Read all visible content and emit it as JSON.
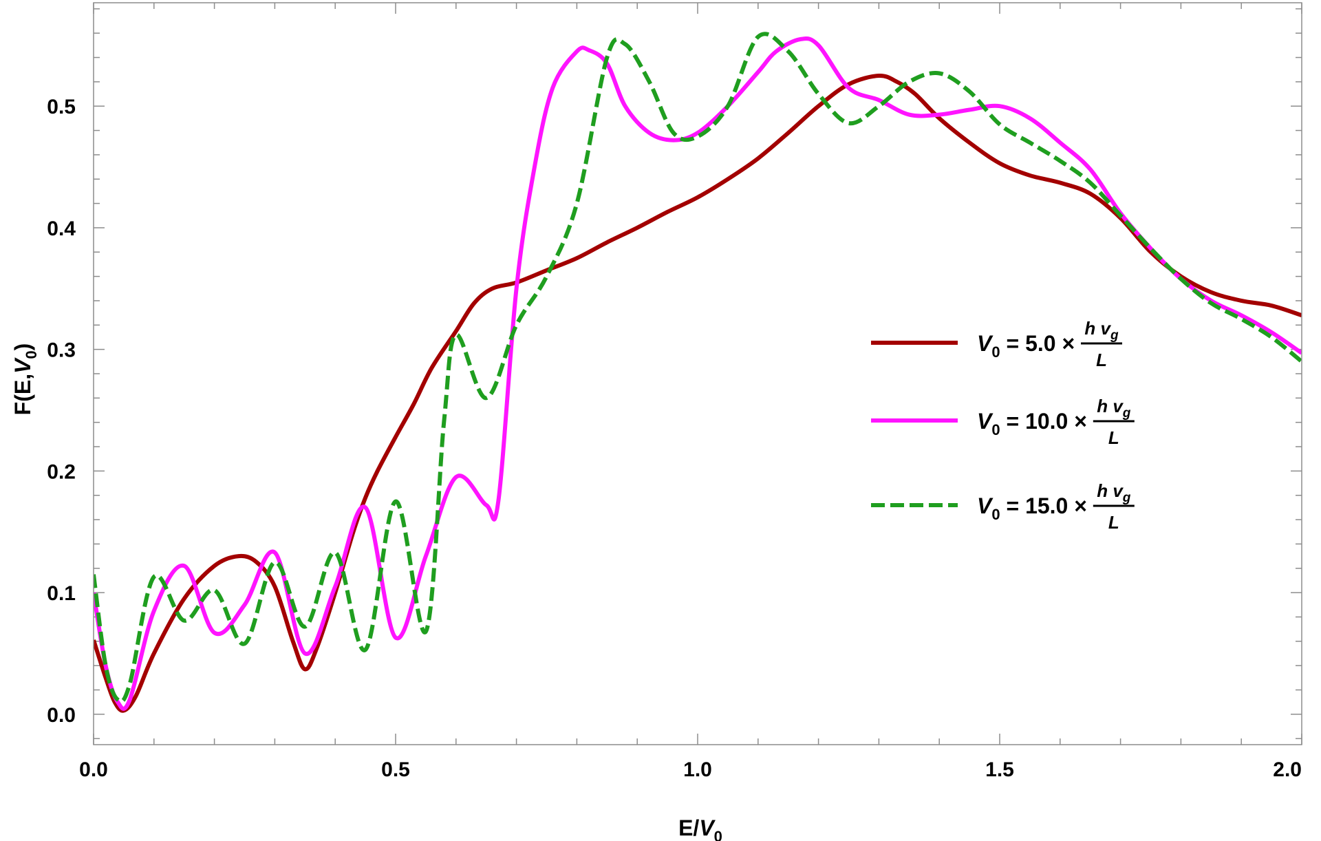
{
  "chart_data": {
    "type": "line",
    "title": "",
    "xlabel": {
      "main": "E/",
      "var": "V",
      "sub": "0"
    },
    "ylabel": {
      "pre": "F(E,",
      "var": "V",
      "sub": "0",
      "post": ")"
    },
    "xlim": [
      0.0,
      2.0
    ],
    "ylim": [
      -0.025,
      0.585
    ],
    "x_ticks": [
      {
        "value": 0.0,
        "label": "0.0"
      },
      {
        "value": 0.5,
        "label": "0.5"
      },
      {
        "value": 1.0,
        "label": "1.0"
      },
      {
        "value": 1.5,
        "label": "1.5"
      },
      {
        "value": 2.0,
        "label": "2.0"
      }
    ],
    "y_ticks": [
      {
        "value": 0.0,
        "label": "0.0"
      },
      {
        "value": 0.1,
        "label": "0.1"
      },
      {
        "value": 0.2,
        "label": "0.2"
      },
      {
        "value": 0.3,
        "label": "0.3"
      },
      {
        "value": 0.4,
        "label": "0.4"
      },
      {
        "value": 0.5,
        "label": "0.5"
      }
    ],
    "x_minor_step": 0.1,
    "y_minor_step": 0.02,
    "grid": false,
    "legend_position": "right",
    "series": [
      {
        "legend": {
          "var": "V",
          "sub": "0",
          "text": " = 5.0 × ",
          "num": "h v",
          "num_sub": "g",
          "den": "L"
        },
        "color": "#a30000",
        "dash": "solid",
        "x": [
          0.0,
          0.02,
          0.035,
          0.05,
          0.07,
          0.1,
          0.15,
          0.2,
          0.24,
          0.27,
          0.3,
          0.33,
          0.35,
          0.37,
          0.4,
          0.43,
          0.45,
          0.47,
          0.5,
          0.53,
          0.56,
          0.6,
          0.63,
          0.66,
          0.7,
          0.75,
          0.8,
          0.85,
          0.9,
          0.95,
          1.0,
          1.05,
          1.1,
          1.15,
          1.2,
          1.25,
          1.3,
          1.33,
          1.36,
          1.4,
          1.45,
          1.5,
          1.55,
          1.6,
          1.65,
          1.7,
          1.75,
          1.8,
          1.85,
          1.9,
          1.95,
          2.0
        ],
        "y": [
          0.061,
          0.03,
          0.01,
          0.003,
          0.015,
          0.05,
          0.095,
          0.122,
          0.13,
          0.125,
          0.105,
          0.06,
          0.037,
          0.055,
          0.1,
          0.15,
          0.178,
          0.2,
          0.228,
          0.255,
          0.285,
          0.315,
          0.338,
          0.35,
          0.355,
          0.365,
          0.375,
          0.388,
          0.4,
          0.413,
          0.425,
          0.44,
          0.457,
          0.478,
          0.5,
          0.518,
          0.525,
          0.52,
          0.51,
          0.49,
          0.47,
          0.453,
          0.443,
          0.437,
          0.428,
          0.408,
          0.38,
          0.36,
          0.347,
          0.34,
          0.336,
          0.328
        ]
      },
      {
        "legend": {
          "var": "V",
          "sub": "0",
          "text": " = 10.0 × ",
          "num": "h v",
          "num_sub": "g",
          "den": "L"
        },
        "color": "#ff14ff",
        "dash": "solid",
        "x": [
          0.0,
          0.02,
          0.04,
          0.06,
          0.1,
          0.15,
          0.2,
          0.25,
          0.3,
          0.35,
          0.4,
          0.45,
          0.5,
          0.55,
          0.6,
          0.65,
          0.67,
          0.7,
          0.73,
          0.76,
          0.8,
          0.82,
          0.85,
          0.88,
          0.92,
          0.96,
          1.0,
          1.05,
          1.1,
          1.13,
          1.17,
          1.2,
          1.25,
          1.3,
          1.35,
          1.4,
          1.45,
          1.5,
          1.55,
          1.6,
          1.65,
          1.7,
          1.75,
          1.8,
          1.85,
          1.9,
          1.95,
          2.0
        ],
        "y": [
          0.1,
          0.04,
          0.01,
          0.012,
          0.085,
          0.122,
          0.067,
          0.09,
          0.133,
          0.05,
          0.105,
          0.17,
          0.063,
          0.13,
          0.195,
          0.172,
          0.175,
          0.35,
          0.45,
          0.515,
          0.545,
          0.546,
          0.535,
          0.5,
          0.478,
          0.472,
          0.478,
          0.5,
          0.528,
          0.545,
          0.555,
          0.55,
          0.515,
          0.505,
          0.493,
          0.493,
          0.497,
          0.5,
          0.49,
          0.47,
          0.448,
          0.412,
          0.383,
          0.358,
          0.34,
          0.328,
          0.314,
          0.297
        ]
      },
      {
        "legend": {
          "var": "V",
          "sub": "0",
          "text": " = 15.0 × ",
          "num": "h v",
          "num_sub": "g",
          "den": "L"
        },
        "color": "#1f9e1f",
        "dash": "dashed",
        "x": [
          0.0,
          0.02,
          0.04,
          0.06,
          0.1,
          0.15,
          0.2,
          0.25,
          0.3,
          0.35,
          0.4,
          0.45,
          0.5,
          0.55,
          0.58,
          0.6,
          0.65,
          0.7,
          0.75,
          0.8,
          0.85,
          0.88,
          0.92,
          0.96,
          1.0,
          1.05,
          1.1,
          1.15,
          1.2,
          1.25,
          1.3,
          1.35,
          1.4,
          1.45,
          1.5,
          1.55,
          1.6,
          1.65,
          1.7,
          1.75,
          1.8,
          1.85,
          1.9,
          1.95,
          2.0
        ],
        "y": [
          0.115,
          0.04,
          0.012,
          0.025,
          0.113,
          0.077,
          0.102,
          0.058,
          0.125,
          0.072,
          0.133,
          0.053,
          0.175,
          0.068,
          0.24,
          0.312,
          0.26,
          0.32,
          0.36,
          0.42,
          0.54,
          0.551,
          0.52,
          0.478,
          0.475,
          0.5,
          0.557,
          0.545,
          0.51,
          0.486,
          0.5,
          0.52,
          0.527,
          0.512,
          0.485,
          0.47,
          0.455,
          0.437,
          0.41,
          0.383,
          0.358,
          0.338,
          0.325,
          0.31,
          0.29
        ]
      }
    ]
  }
}
